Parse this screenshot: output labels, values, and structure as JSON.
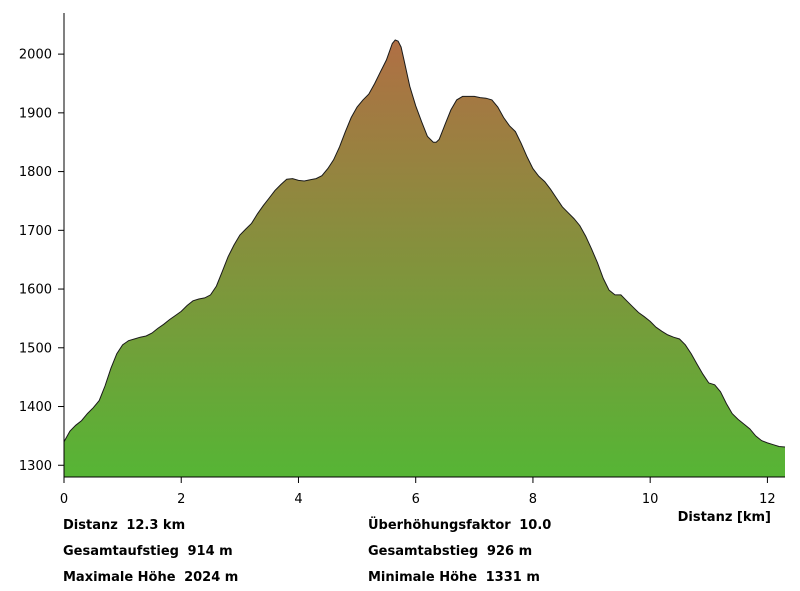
{
  "chart_data": {
    "type": "area",
    "xlabel": "Distanz [km]",
    "ylabel": "",
    "xlim": [
      0,
      12.3
    ],
    "ylim": [
      1280,
      2070
    ],
    "x_ticks": [
      0,
      2,
      4,
      6,
      8,
      10,
      12
    ],
    "y_ticks": [
      1300,
      1400,
      1500,
      1600,
      1700,
      1800,
      1900,
      2000
    ],
    "grid": false,
    "fill_gradient": {
      "bottom": "#56b535",
      "top": "#b06f44"
    },
    "line_color": "#1a1a1a",
    "profile": [
      [
        0.0,
        1340
      ],
      [
        0.1,
        1358
      ],
      [
        0.2,
        1368
      ],
      [
        0.3,
        1376
      ],
      [
        0.4,
        1388
      ],
      [
        0.5,
        1398
      ],
      [
        0.6,
        1410
      ],
      [
        0.7,
        1435
      ],
      [
        0.8,
        1465
      ],
      [
        0.9,
        1490
      ],
      [
        1.0,
        1505
      ],
      [
        1.1,
        1512
      ],
      [
        1.2,
        1515
      ],
      [
        1.3,
        1518
      ],
      [
        1.4,
        1520
      ],
      [
        1.5,
        1525
      ],
      [
        1.6,
        1533
      ],
      [
        1.7,
        1540
      ],
      [
        1.8,
        1548
      ],
      [
        1.9,
        1555
      ],
      [
        2.0,
        1562
      ],
      [
        2.1,
        1572
      ],
      [
        2.2,
        1580
      ],
      [
        2.3,
        1583
      ],
      [
        2.4,
        1585
      ],
      [
        2.5,
        1590
      ],
      [
        2.6,
        1605
      ],
      [
        2.7,
        1630
      ],
      [
        2.8,
        1655
      ],
      [
        2.9,
        1675
      ],
      [
        3.0,
        1692
      ],
      [
        3.1,
        1702
      ],
      [
        3.2,
        1712
      ],
      [
        3.3,
        1728
      ],
      [
        3.4,
        1742
      ],
      [
        3.5,
        1755
      ],
      [
        3.6,
        1768
      ],
      [
        3.7,
        1778
      ],
      [
        3.8,
        1787
      ],
      [
        3.9,
        1788
      ],
      [
        4.0,
        1785
      ],
      [
        4.1,
        1784
      ],
      [
        4.2,
        1786
      ],
      [
        4.3,
        1788
      ],
      [
        4.4,
        1793
      ],
      [
        4.5,
        1805
      ],
      [
        4.6,
        1820
      ],
      [
        4.7,
        1842
      ],
      [
        4.8,
        1868
      ],
      [
        4.9,
        1892
      ],
      [
        5.0,
        1910
      ],
      [
        5.1,
        1922
      ],
      [
        5.2,
        1932
      ],
      [
        5.3,
        1950
      ],
      [
        5.4,
        1970
      ],
      [
        5.5,
        1990
      ],
      [
        5.6,
        2018
      ],
      [
        5.65,
        2024
      ],
      [
        5.7,
        2022
      ],
      [
        5.75,
        2012
      ],
      [
        5.8,
        1990
      ],
      [
        5.9,
        1945
      ],
      [
        6.0,
        1912
      ],
      [
        6.1,
        1885
      ],
      [
        6.2,
        1860
      ],
      [
        6.3,
        1850
      ],
      [
        6.35,
        1850
      ],
      [
        6.4,
        1855
      ],
      [
        6.5,
        1880
      ],
      [
        6.6,
        1905
      ],
      [
        6.7,
        1922
      ],
      [
        6.8,
        1928
      ],
      [
        6.9,
        1928
      ],
      [
        7.0,
        1928
      ],
      [
        7.1,
        1926
      ],
      [
        7.2,
        1925
      ],
      [
        7.3,
        1922
      ],
      [
        7.4,
        1910
      ],
      [
        7.5,
        1892
      ],
      [
        7.6,
        1878
      ],
      [
        7.7,
        1868
      ],
      [
        7.8,
        1848
      ],
      [
        7.9,
        1825
      ],
      [
        8.0,
        1805
      ],
      [
        8.1,
        1792
      ],
      [
        8.2,
        1783
      ],
      [
        8.3,
        1770
      ],
      [
        8.4,
        1755
      ],
      [
        8.5,
        1740
      ],
      [
        8.6,
        1730
      ],
      [
        8.7,
        1720
      ],
      [
        8.8,
        1708
      ],
      [
        8.9,
        1690
      ],
      [
        9.0,
        1668
      ],
      [
        9.1,
        1645
      ],
      [
        9.2,
        1618
      ],
      [
        9.3,
        1598
      ],
      [
        9.4,
        1590
      ],
      [
        9.5,
        1590
      ],
      [
        9.6,
        1580
      ],
      [
        9.7,
        1570
      ],
      [
        9.8,
        1560
      ],
      [
        9.9,
        1553
      ],
      [
        10.0,
        1545
      ],
      [
        10.1,
        1535
      ],
      [
        10.2,
        1528
      ],
      [
        10.3,
        1522
      ],
      [
        10.4,
        1518
      ],
      [
        10.5,
        1515
      ],
      [
        10.6,
        1505
      ],
      [
        10.7,
        1490
      ],
      [
        10.8,
        1472
      ],
      [
        10.9,
        1455
      ],
      [
        11.0,
        1440
      ],
      [
        11.1,
        1437
      ],
      [
        11.2,
        1425
      ],
      [
        11.3,
        1405
      ],
      [
        11.4,
        1388
      ],
      [
        11.5,
        1378
      ],
      [
        11.6,
        1370
      ],
      [
        11.7,
        1362
      ],
      [
        11.8,
        1350
      ],
      [
        11.9,
        1342
      ],
      [
        12.0,
        1338
      ],
      [
        12.1,
        1335
      ],
      [
        12.2,
        1332
      ],
      [
        12.3,
        1331
      ]
    ]
  },
  "stats": {
    "distance_label": "Distanz",
    "distance_value": "12.3 km",
    "ascent_label": "Gesamtaufstieg",
    "ascent_value": "914 m",
    "max_label": "Maximale Höhe",
    "max_value": "2024 m",
    "exaggeration_label": "Überhöhungsfaktor",
    "exaggeration_value": "10.0",
    "descent_label": "Gesamtabstieg",
    "descent_value": "926 m",
    "min_label": "Minimale Höhe",
    "min_value": "1331 m"
  }
}
